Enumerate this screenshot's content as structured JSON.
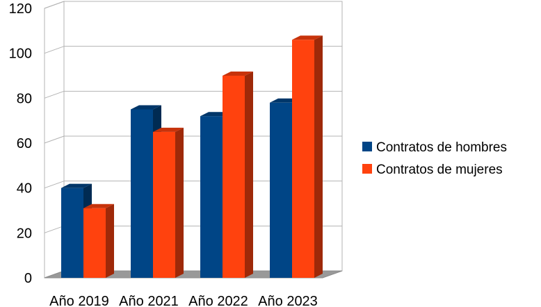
{
  "chart_data": {
    "type": "bar",
    "categories": [
      "Año 2019",
      "Año 2021",
      "Año 2022",
      "Año 2023"
    ],
    "series": [
      {
        "name": "Contratos de hombres",
        "values": [
          40,
          75,
          72,
          78
        ],
        "color": "#004586"
      },
      {
        "name": "Contratos de mujeres",
        "values": [
          31,
          65,
          90,
          106
        ],
        "color": "#ff420e"
      }
    ],
    "ylim": [
      0,
      120
    ],
    "yticks": [
      0,
      20,
      40,
      60,
      80,
      100,
      120
    ],
    "grid": true,
    "legend_position": "right",
    "style": "3d"
  }
}
